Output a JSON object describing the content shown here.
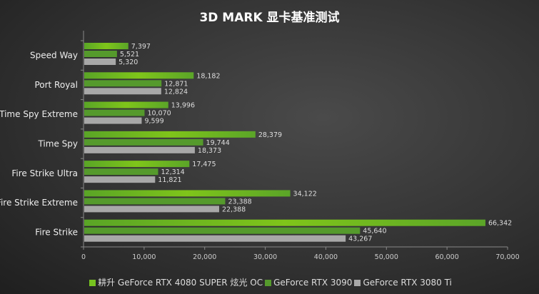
{
  "chart_data": {
    "type": "bar",
    "orientation": "horizontal",
    "title": "3D MARK 显卡基准测试",
    "categories": [
      "Speed Way",
      "Port Royal",
      "Time Spy Extreme",
      "Time Spy",
      "Fire Strike Ultra",
      "Fire Strike Extreme",
      "Fire Strike"
    ],
    "series": [
      {
        "name": "耕升 GeForce RTX 4080 SUPER 炫光 OC",
        "color": "#76c21f",
        "values": [
          7397,
          18182,
          13996,
          28379,
          17475,
          34122,
          66342
        ]
      },
      {
        "name": "GeForce RTX 3090",
        "color": "#559a2c",
        "values": [
          5521,
          12871,
          10070,
          19744,
          12314,
          23388,
          45640
        ]
      },
      {
        "name": "GeForce RTX 3080 Ti",
        "color": "#a8a8a8",
        "values": [
          5320,
          12824,
          9599,
          18373,
          11821,
          22388,
          43267
        ]
      }
    ],
    "xlim": [
      0,
      70000
    ],
    "xticks": [
      0,
      10000,
      20000,
      30000,
      40000,
      50000,
      60000,
      70000
    ],
    "xtick_labels": [
      "0",
      "10,000",
      "20,000",
      "30,000",
      "40,000",
      "50,000",
      "60,000",
      "70,000"
    ],
    "legend_position": "bottom",
    "grid": false
  }
}
